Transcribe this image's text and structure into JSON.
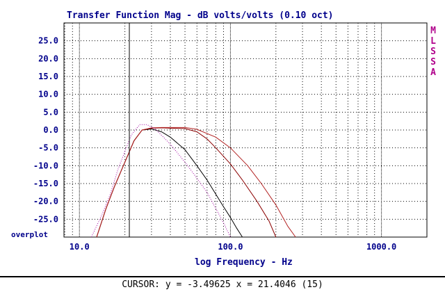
{
  "chart_data": {
    "type": "line",
    "title": "Transfer Function Mag - dB volts/volts (0.10 oct)",
    "xlabel": "log Frequency - Hz",
    "ylabel": "",
    "xscale": "log",
    "xlim": [
      7,
      1000000
    ],
    "xlim_note": "",
    "ylim": [
      -30,
      30
    ],
    "xlim_display": [
      7.9,
      2000
    ],
    "yticks": [
      25.0,
      20.0,
      15.0,
      10.0,
      5.0,
      0.0,
      -5.0,
      -10.0,
      -15.0,
      -20.0,
      -25.0
    ],
    "ytick_labels": [
      "25.0",
      "20.0",
      "15.0",
      "10.0",
      "5.0",
      "0.0",
      "-5.0",
      "-10.0",
      "-15.0",
      "-20.0",
      "-25.0"
    ],
    "xticks": [
      10,
      100,
      1000
    ],
    "xtick_labels": [
      "10.0",
      "100.0",
      "1000.0"
    ],
    "grid": true,
    "cursor_x": 21.4046,
    "overplot_label": "overplot",
    "side_label": [
      "M",
      "L",
      "S",
      "S",
      "A"
    ],
    "series": [
      {
        "color": "#000000",
        "x": [
          13,
          15,
          17,
          20,
          23,
          26,
          30,
          35,
          40,
          50,
          60,
          70,
          80,
          90,
          100,
          110,
          120
        ],
        "y": [
          -30,
          -22,
          -16,
          -9,
          -3,
          0,
          0.3,
          -0.5,
          -2,
          -5.5,
          -10,
          -14,
          -18,
          -21.5,
          -24.5,
          -27.5,
          -30
        ]
      },
      {
        "color": "#8b0000",
        "x": [
          13,
          15,
          17,
          20,
          23,
          26,
          30,
          35,
          40,
          50,
          60,
          70,
          80,
          100,
          120,
          150,
          180,
          200
        ],
        "y": [
          -30,
          -22,
          -16,
          -9,
          -3,
          0,
          0.5,
          0.6,
          0.5,
          0.4,
          -0.5,
          -2.5,
          -5,
          -9.5,
          -14,
          -20,
          -25.5,
          -30
        ]
      },
      {
        "color": "#b22222",
        "x": [
          13,
          15,
          17,
          20,
          23,
          26,
          30,
          35,
          40,
          50,
          60,
          80,
          100,
          130,
          160,
          200,
          240,
          270
        ],
        "y": [
          -30,
          -22,
          -16,
          -9,
          -3,
          0,
          0.6,
          0.7,
          0.7,
          0.7,
          0.2,
          -2,
          -5,
          -10,
          -15,
          -21,
          -27,
          -30
        ]
      },
      {
        "color": "#a000a0",
        "dotted": true,
        "x": [
          12,
          14,
          16,
          18,
          20,
          22,
          25,
          28,
          32,
          40,
          50,
          60,
          70,
          80,
          90,
          100
        ],
        "y": [
          -30,
          -24,
          -18,
          -11,
          -6,
          -1.5,
          1.5,
          1.5,
          0.2,
          -4,
          -9,
          -13.5,
          -17.5,
          -22,
          -26,
          -30
        ]
      }
    ]
  },
  "status": {
    "cursor_text": "CURSOR: y = -3.49625 x = 21.4046 (15)"
  }
}
